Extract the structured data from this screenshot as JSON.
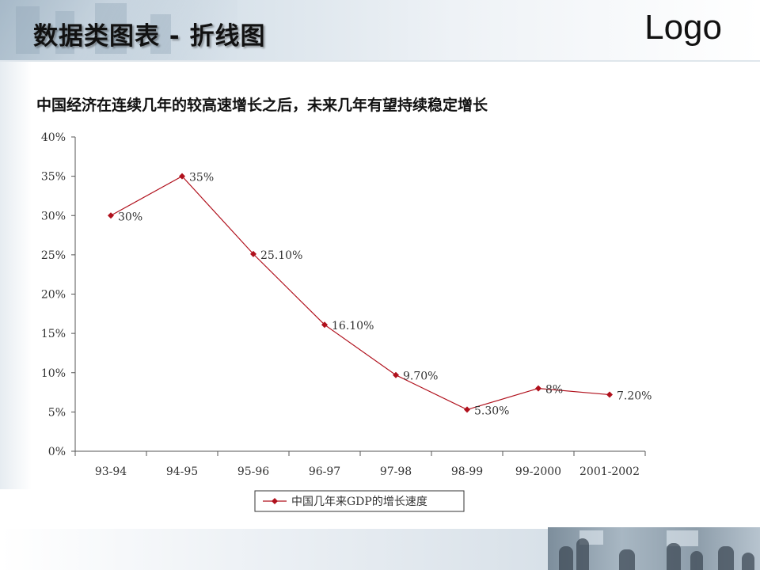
{
  "header": {
    "title": "数据类图表 - 折线图",
    "logo": "Logo"
  },
  "subtitle": "中国经济在连续几年的较高速增长之后，未来几年有望持续稳定增长",
  "chart_data": {
    "type": "line",
    "categories": [
      "93-94",
      "94-95",
      "95-96",
      "96-97",
      "97-98",
      "98-99",
      "99-2000",
      "2001-2002"
    ],
    "series": [
      {
        "name": "中国几年来GDP的增长速度",
        "values": [
          30,
          35,
          25.1,
          16.1,
          9.7,
          5.3,
          8,
          7.2
        ],
        "labels": [
          "30%",
          "35%",
          "25.10%",
          "16.10%",
          "9.70%",
          "5.30%",
          "8%",
          "7.20%"
        ],
        "color": "#b0101c"
      }
    ],
    "yticks": [
      "0%",
      "5%",
      "10%",
      "15%",
      "20%",
      "25%",
      "30%",
      "35%",
      "40%"
    ],
    "ylim": [
      0,
      40
    ],
    "grid": false,
    "legend_position": "bottom-center",
    "title": "",
    "xlabel": "",
    "ylabel": ""
  },
  "colors": {
    "line": "#b0101c",
    "axis": "#555555"
  }
}
